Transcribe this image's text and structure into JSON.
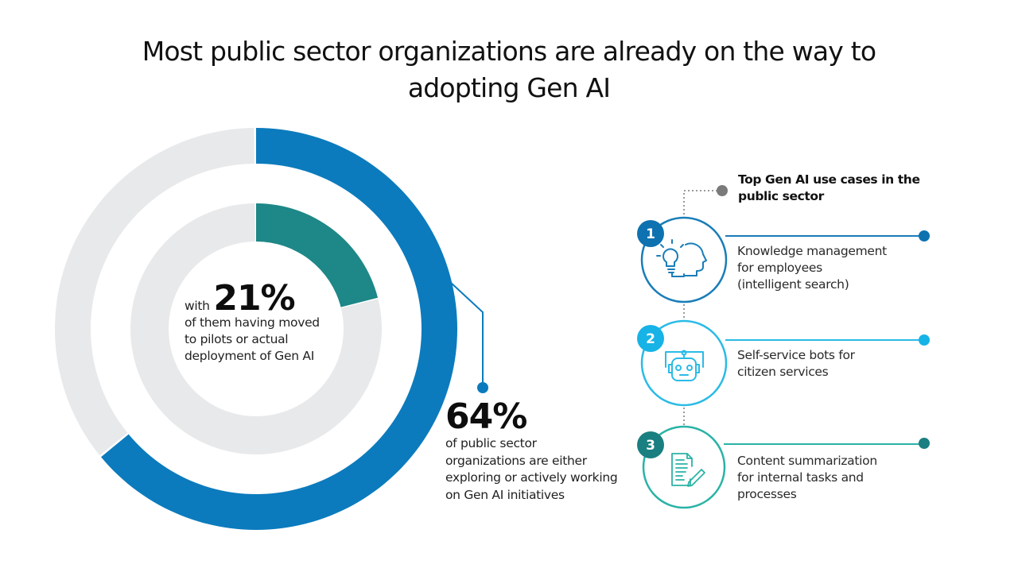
{
  "title": {
    "line1": "Most public sector organizations are already on the way to",
    "line2": "adopting Gen AI"
  },
  "chart_data": {
    "type": "pie",
    "subtype": "nested-donut",
    "title": "Most public sector organizations are already on the way to adopting Gen AI",
    "series": [
      {
        "name": "outer-ring",
        "value": 64,
        "unit": "%",
        "color": "#0b7bbd",
        "remainder_color": "#e8e9eb",
        "label_big": "64%",
        "label_text": [
          "of public sector",
          "organizations are either",
          "exploring or actively working",
          "on Gen AI initiatives"
        ]
      },
      {
        "name": "inner-ring",
        "value": 21,
        "unit": "%",
        "color": "#1e8787",
        "remainder_color": "#e8e9eb",
        "label_prefix": "with",
        "label_big": "21%",
        "label_text": [
          "of them having moved",
          "to pilots or actual",
          "deployment of Gen AI"
        ]
      }
    ]
  },
  "use_cases": {
    "heading": [
      "Top Gen AI use cases in the",
      "public sector"
    ],
    "heading_dot_color": "#7a7a7a",
    "items": [
      {
        "number": "1",
        "icon": "lightbulb-head-icon",
        "color": "#0e72b0",
        "ring_color": "#1a7db8",
        "text": [
          "Knowledge management",
          "for employees",
          "(intelligent search)"
        ]
      },
      {
        "number": "2",
        "icon": "robot-icon",
        "color": "#17b3e6",
        "ring_color": "#2bbbe6",
        "text": [
          "Self-service bots for",
          "citizen services"
        ]
      },
      {
        "number": "3",
        "icon": "document-pen-icon",
        "color": "#1a7f80",
        "ring_color": "#2ab3a6",
        "text": [
          "Content summarization",
          "for internal tasks and",
          "processes"
        ]
      }
    ]
  }
}
